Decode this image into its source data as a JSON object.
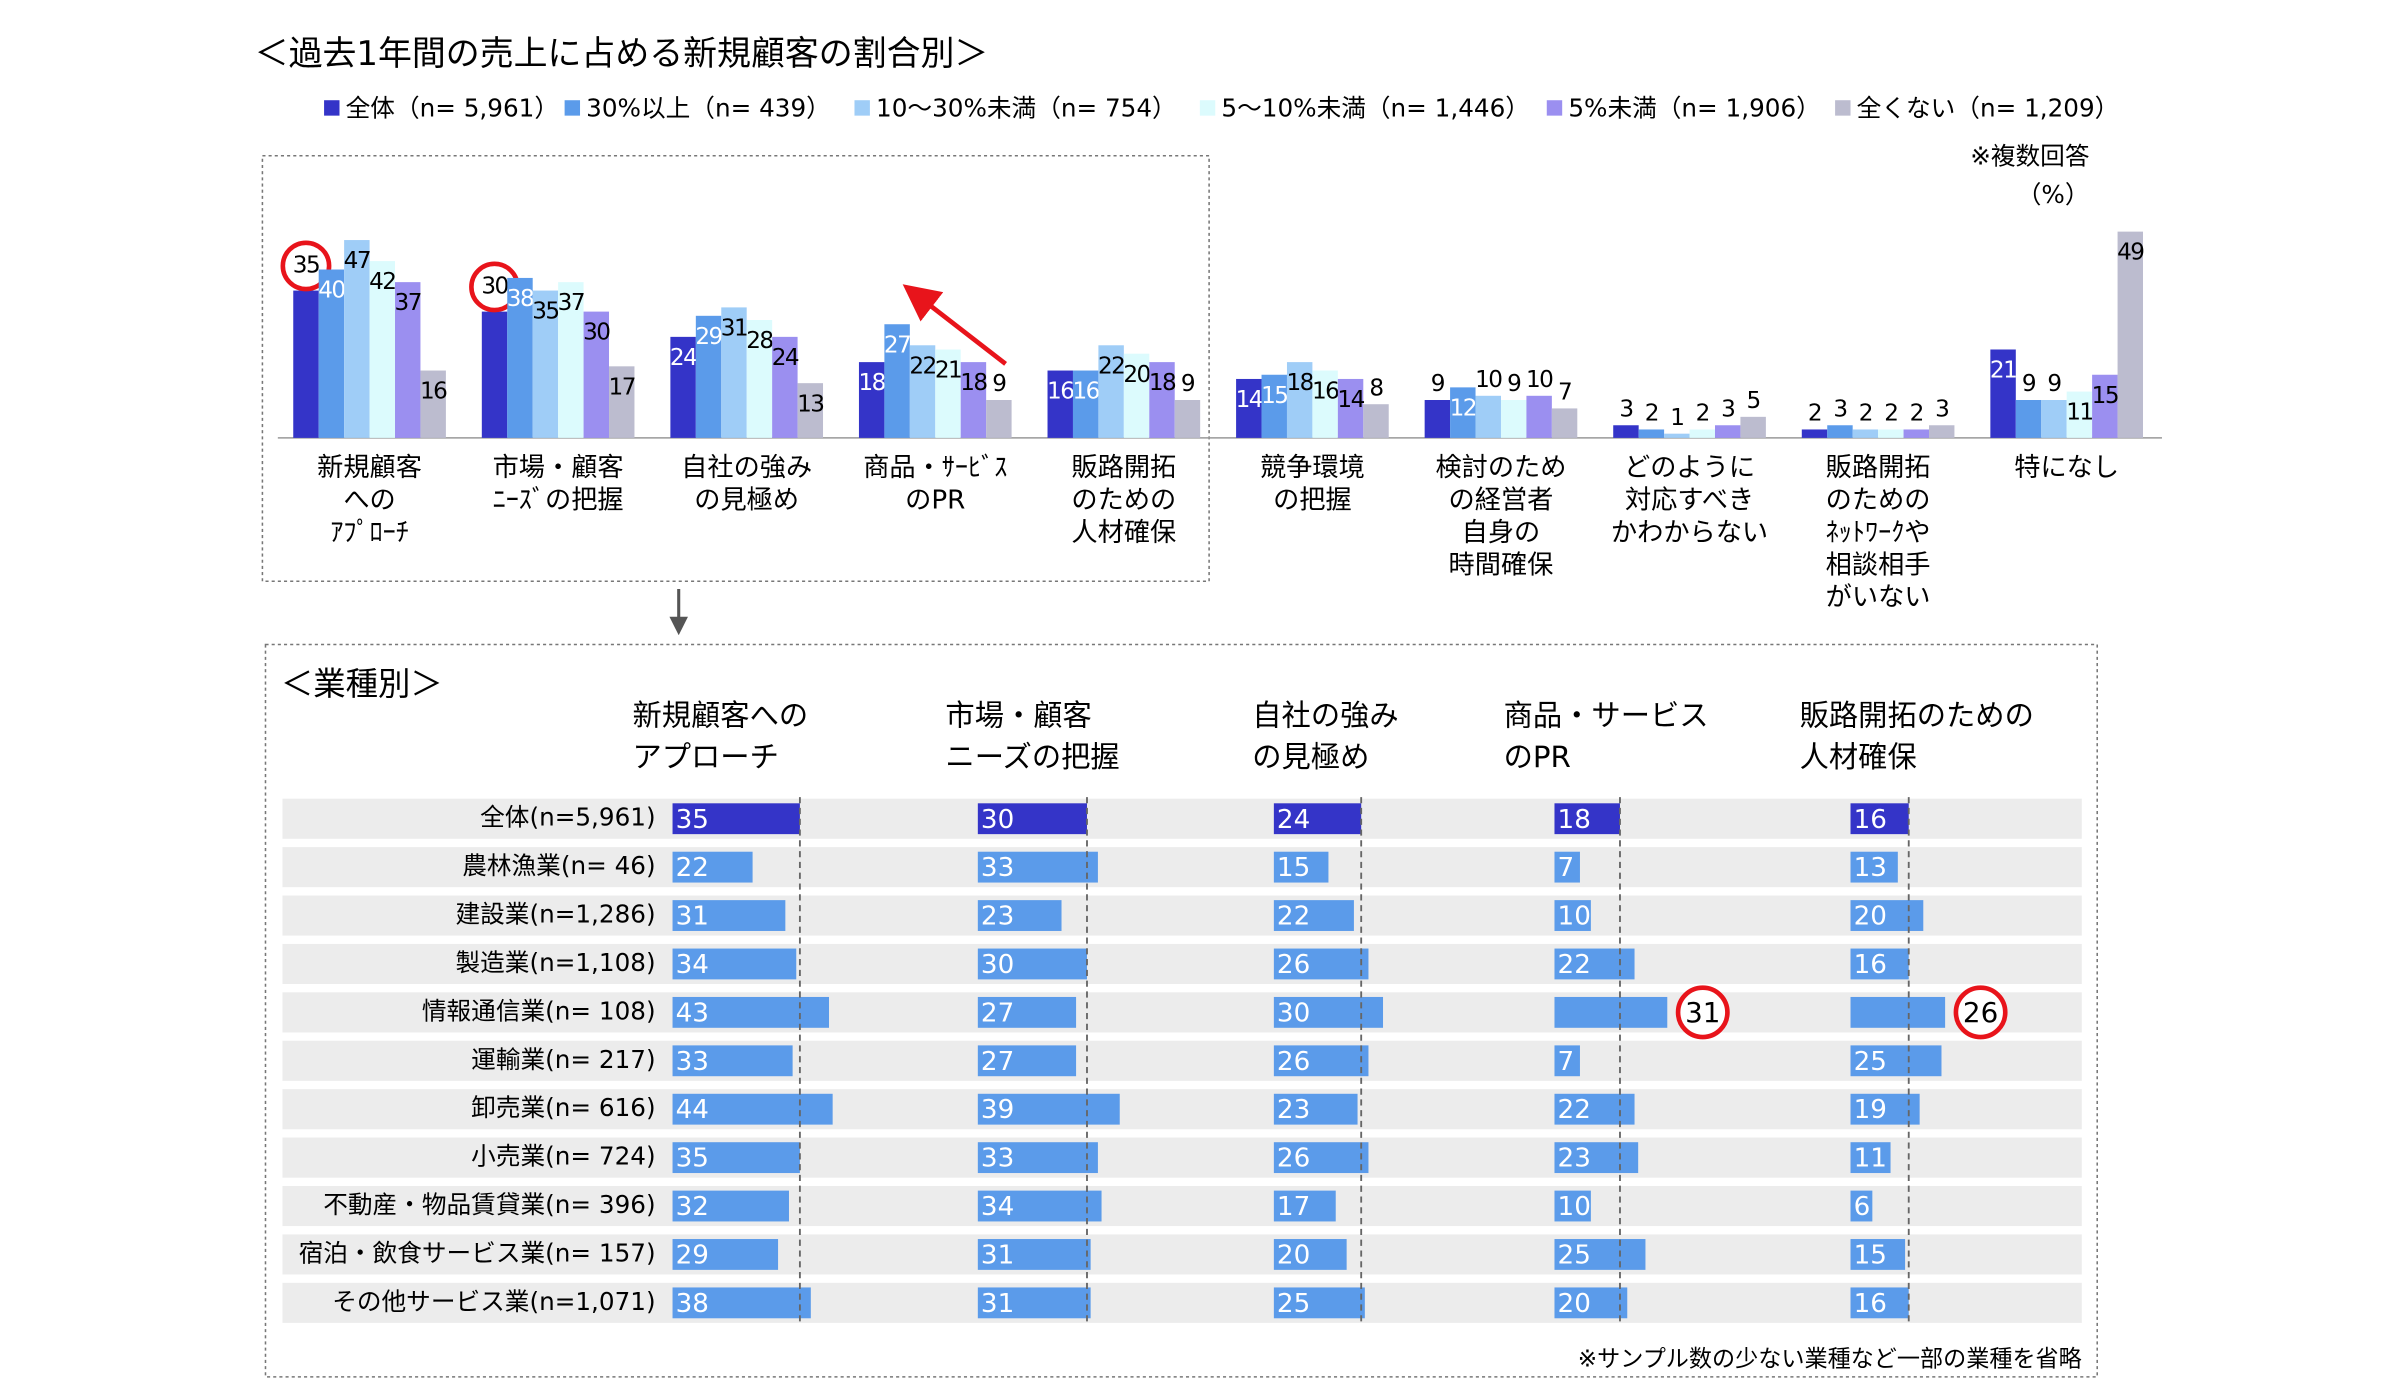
{
  "chart_data": [
    {
      "type": "grouped-bar",
      "title": "＜過去1年間の売上に占める新規顧客の割合別＞",
      "notes": [
        "※複数回答",
        "（%）"
      ],
      "categories": [
        [
          "新規顧客",
          "への",
          "ｱﾌﾟﾛｰﾁ"
        ],
        [
          "市場・顧客",
          "ﾆｰｽﾞの把握"
        ],
        [
          "自社の強み",
          "の見極め"
        ],
        [
          "商品・ｻｰﾋﾞｽ",
          "のPR"
        ],
        [
          "販路開拓",
          "のための",
          "人材確保"
        ],
        [
          "競争環境",
          "の把握"
        ],
        [
          "検討のため",
          "の経営者",
          "自身の",
          "時間確保"
        ],
        [
          "どのように",
          "対応すべき",
          "かわからない"
        ],
        [
          "販路開拓",
          "のための",
          "ﾈｯﾄﾜｰｸや",
          "相談相手",
          "がいない"
        ],
        [
          "特になし"
        ]
      ],
      "series": [
        {
          "name": "全体（n= 5,961）",
          "color": "#3434c8",
          "values": [
            35,
            30,
            24,
            18,
            16,
            14,
            9,
            3,
            2,
            21
          ]
        },
        {
          "name": "30%以上（n=  439）",
          "color": "#5b9bea",
          "values": [
            40,
            38,
            29,
            27,
            16,
            15,
            12,
            2,
            3,
            9
          ]
        },
        {
          "name": "10～30%未満（n=  754）",
          "color": "#9fcdf7",
          "values": [
            47,
            35,
            31,
            22,
            22,
            18,
            10,
            1,
            2,
            9
          ]
        },
        {
          "name": "5～10%未満（n= 1,446）",
          "color": "#dcfbfd",
          "values": [
            42,
            37,
            28,
            21,
            20,
            16,
            9,
            2,
            2,
            11
          ]
        },
        {
          "name": "5%未満（n= 1,906）",
          "color": "#9b8ff0",
          "values": [
            37,
            30,
            24,
            18,
            18,
            14,
            10,
            3,
            2,
            15
          ]
        },
        {
          "name": "全くない（n= 1,209）",
          "color": "#bcbccf",
          "values": [
            16,
            17,
            13,
            9,
            9,
            8,
            7,
            5,
            3,
            49
          ]
        }
      ],
      "circled": [
        [
          0,
          0
        ],
        [
          0,
          1
        ]
      ]
    },
    {
      "type": "small-multiple-hbar",
      "title": "＜業種別＞",
      "note": "※サンプル数の少ない業種など一部の業種を省略",
      "categories": [
        "全体(n=5,961)",
        "農林漁業(n= 46)",
        "建設業(n=1,286)",
        "製造業(n=1,108)",
        "情報通信業(n= 108)",
        "運輸業(n= 217)",
        "卸売業(n= 616)",
        "小売業(n= 724)",
        "不動産・物品賃貸業(n= 396)",
        "宿泊・飲食サービス業(n= 157)",
        "その他サービス業(n=1,071)"
      ],
      "color": "#5b9bea",
      "total_color": "#3434c8",
      "series": [
        {
          "name": [
            "新規顧客への",
            "アプローチ"
          ],
          "values": [
            35,
            22,
            31,
            34,
            43,
            33,
            44,
            35,
            32,
            29,
            38
          ]
        },
        {
          "name": [
            "市場・顧客",
            "ニーズの把握"
          ],
          "values": [
            30,
            33,
            23,
            30,
            27,
            27,
            39,
            33,
            34,
            31,
            31
          ]
        },
        {
          "name": [
            "自社の強み",
            "の見極め"
          ],
          "values": [
            24,
            15,
            22,
            26,
            30,
            26,
            23,
            26,
            17,
            20,
            25
          ]
        },
        {
          "name": [
            "商品・サービス",
            "のPR"
          ],
          "values": [
            18,
            7,
            10,
            22,
            31,
            7,
            22,
            23,
            10,
            25,
            20
          ]
        },
        {
          "name": [
            "販路開拓のための",
            "人材確保"
          ],
          "values": [
            16,
            13,
            20,
            16,
            26,
            25,
            19,
            11,
            6,
            15,
            16
          ]
        }
      ],
      "circled": [
        [
          3,
          4
        ],
        [
          4,
          4
        ]
      ]
    }
  ]
}
